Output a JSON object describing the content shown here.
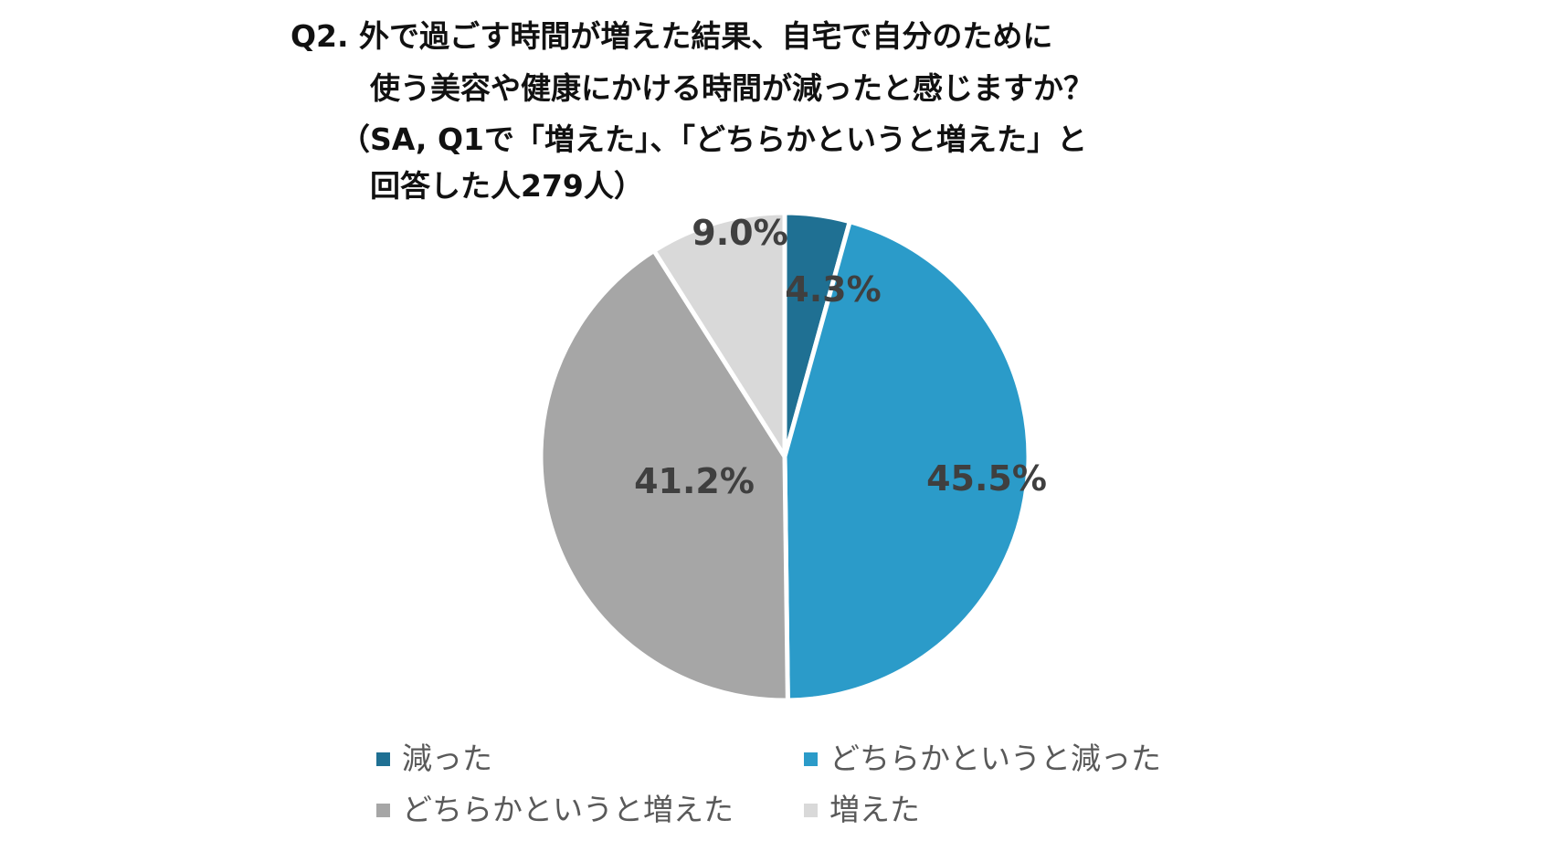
{
  "chart_data": {
    "type": "pie",
    "title_lines": [
      "Q2. 外で過ごす時間が増えた結果、自宅で自分のために",
      "使う美容や健康にかける時間が減ったと感じますか？",
      "（SA, Q1で「増えた」、「どちらかというと増えた」と",
      "回答した人279人）"
    ],
    "categories": [
      "減った",
      "どちらかというと減った",
      "どちらかというと増えた",
      "増えた"
    ],
    "values": [
      4.3,
      45.5,
      41.2,
      9.0
    ],
    "value_labels": [
      "4.3%",
      "45.5%",
      "41.2%",
      "9.0%"
    ],
    "unit": "%",
    "colors": [
      "#1f7093",
      "#2b9bc9",
      "#a6a6a6",
      "#d9d9d9"
    ],
    "start": "12 o'clock",
    "direction": "clockwise",
    "legend_position": "bottom",
    "legend_columns": 2
  }
}
